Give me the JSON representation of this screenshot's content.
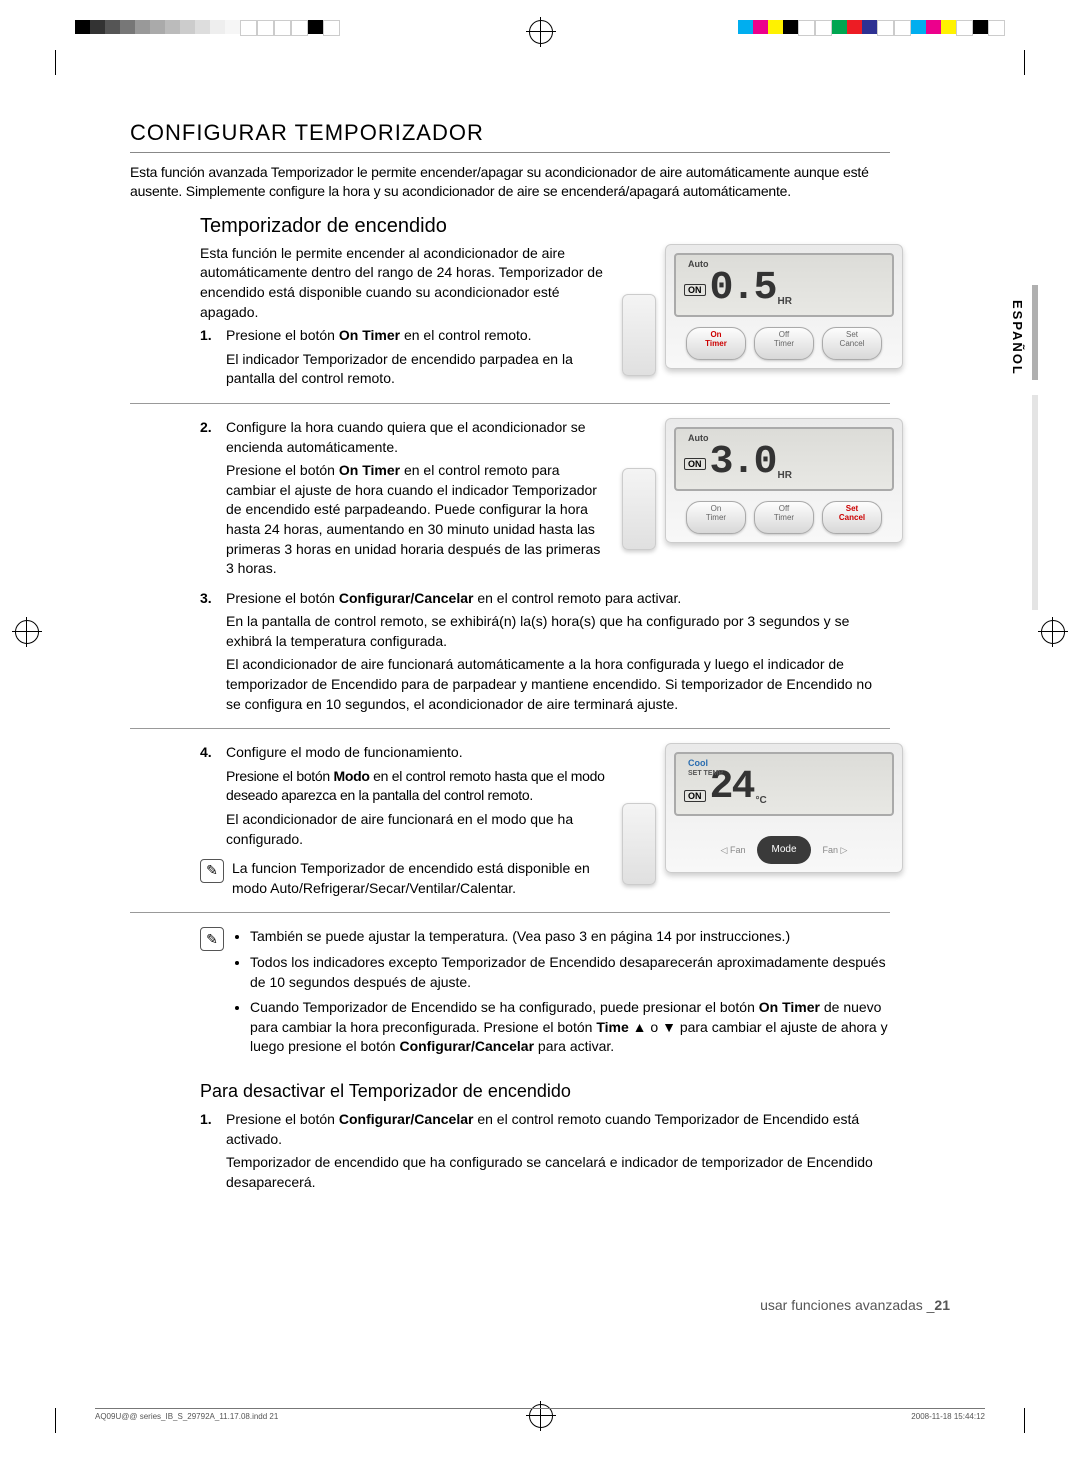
{
  "colorBars": {
    "left": [
      "#000000",
      "#333333",
      "#555555",
      "#777777",
      "#999999",
      "#aaaaaa",
      "#bbbbbb",
      "#cccccc",
      "#dddddd",
      "#eeeeee",
      "#f6f6f6",
      "#ffffff",
      "#ffffff",
      "#ffffff",
      "#ffffff",
      "#000000",
      "#ffffff"
    ],
    "right": [
      "#00aeef",
      "#ec008c",
      "#fff200",
      "#000000",
      "#ffffff",
      "#ffffff",
      "#00a651",
      "#ed1c24",
      "#2e3192",
      "#ffffff",
      "#ffffff",
      "#00aeef",
      "#ec008c",
      "#fff200",
      "#ffffff",
      "#000000",
      "#ffffff"
    ]
  },
  "title": "CONFIGURAR TEMPORIZADOR",
  "intro": "Esta función avanzada Temporizador le permite encender/apagar su acondicionador de aire automáticamente aunque esté ausente. Simplemente configure la hora y su acondicionador de aire se encenderá/apagará automáticamente.",
  "sub1": "Temporizador de encendido",
  "sub1_intro": "Esta función le permite encender al acondicionador de aire automáticamente dentro del rango de 24 horas. Temporizador de encendido está disponible cuando su acondicionador esté apagado.",
  "steps": [
    {
      "num": "1.",
      "lead_pre": "Presione el botón ",
      "lead_b": "On Timer",
      "lead_post": " en el control remoto.",
      "body": "El indicador Temporizador de encendido parpadea en la pantalla del control remoto."
    },
    {
      "num": "2.",
      "lead": "Configure la hora cuando quiera que el acondicionador se encienda automáticamente.",
      "body_pre": "Presione el botón ",
      "body_b": "On Timer",
      "body_post": " en el control remoto para cambiar el ajuste de hora cuando el indicador Temporizador de encendido esté parpadeando. Puede configurar la hora hasta 24 horas, aumentando en 30 minuto unidad hasta las primeras 3 horas en unidad horaria después de las primeras 3 horas."
    },
    {
      "num": "3.",
      "lead_pre": "Presione el botón ",
      "lead_b": "Configurar/Cancelar",
      "lead_post": " en el control remoto para activar.",
      "body": "En la pantalla de control remoto, se exhibirá(n) la(s) hora(s) que ha configurado por 3 segundos y se exhibrá la temperatura configurada.",
      "body2": "El acondicionador de aire funcionará automáticamente a la hora configurada y luego el indicador de temporizador de Encendido para de parpadear y mantiene encendido. Si temporizador de Encendido no se configura en 10 segundos, el acondicionador de aire terminará ajuste."
    },
    {
      "num": "4.",
      "lead": "Configure el modo de funcionamiento.",
      "body_pre": "Presione el botón ",
      "body_b": "Modo",
      "body_post": " en el control remoto hasta que el modo deseado aparezca en la pantalla del control remoto.",
      "body2": "El acondicionador de aire funcionará en el modo que ha configurado."
    }
  ],
  "note1": "La funcion Temporizador de encendido está disponible en modo Auto/Refrigerar/Secar/Ventilar/Calentar.",
  "note2": {
    "b1": "También se puede ajustar la temperatura. (Vea paso 3 en página 14 por instrucciones.)",
    "b2": "Todos los indicadores excepto Temporizador de Encendido desaparecerán aproximadamente después de 10 segundos después de ajuste.",
    "b3_pre": "Cuando Temporizador de Encendido se ha configurado, puede presionar el botón ",
    "b3_b1": "On Timer",
    "b3_mid": " de nuevo para cambiar la hora preconfigurada. Presione el botón ",
    "b3_b2": "Time ▲",
    "b3_or": " o ",
    "b3_b3": "▼",
    "b3_mid2": " para cambiar el ajuste de ahora y luego presione el botón ",
    "b3_b4": "Configurar/Cancelar",
    "b3_post": " para activar."
  },
  "sub2": "Para desactivar el Temporizador de encendido",
  "deact": {
    "num": "1.",
    "lead_pre": "Presione el botón ",
    "lead_b": "Configurar/Cancelar",
    "lead_post": " en el control remoto cuando Temporizador de Encendido está activado.",
    "body": "Temporizador de encendido que ha configurado se cancelará e indicador de temporizador de Encendido desaparecerá."
  },
  "fig1": {
    "mode": "Auto",
    "on": "ON",
    "digits": "0.5",
    "unit": "HR",
    "btns": [
      "On\nTimer",
      "Off\nTimer",
      "Set\nCancel"
    ],
    "activeIdx": 0
  },
  "fig2": {
    "mode": "Auto",
    "on": "ON",
    "digits": "3.0",
    "unit": "HR",
    "btns": [
      "On\nTimer",
      "Off\nTimer",
      "Set\nCancel"
    ],
    "activeIdx": 2
  },
  "fig3": {
    "mode": "Cool",
    "settemp": "SET TEMP",
    "on": "ON",
    "digits": "24",
    "unit": "°C",
    "fanL": "◁ Fan",
    "modeBtn": "Mode",
    "fanR": "Fan ▷"
  },
  "sidetab": "ESPAÑOL",
  "footer_section_pre": "usar funciones avanzadas _",
  "footer_section_pg": "21",
  "footer_file": "AQ09U@@ series_IB_S_29792A_11.17.08.indd   21",
  "footer_time": "2008-11-18   15:44:12"
}
